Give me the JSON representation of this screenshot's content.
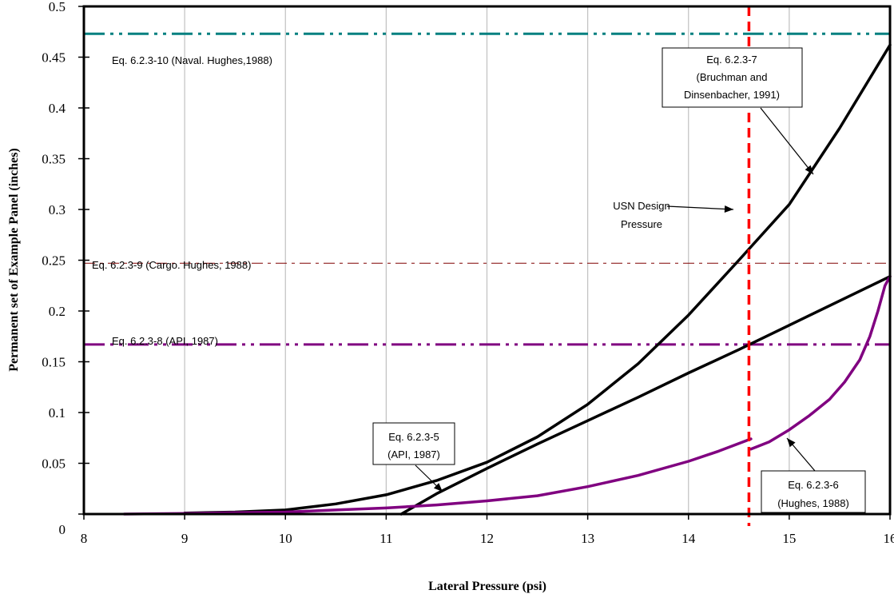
{
  "chart_data": {
    "type": "line",
    "xlabel": "Lateral Pressure (psi)",
    "ylabel": "Permanent set of Example Panel (inches)",
    "xlim": [
      8,
      16
    ],
    "ylim": [
      0,
      0.5
    ],
    "x_ticks": [
      8,
      9,
      10,
      11,
      12,
      13,
      14,
      15,
      16
    ],
    "y_ticks": [
      0,
      0.05,
      0.1,
      0.15,
      0.2,
      0.25,
      0.3,
      0.35,
      0.4,
      0.45,
      0.5
    ],
    "x_tick_labels": [
      "8",
      "9",
      "10",
      "11",
      "12",
      "13",
      "14",
      "15",
      "16"
    ],
    "y_tick_labels": [
      "0",
      "0.05",
      "0.1",
      "0.15",
      "0.2",
      "0.25",
      "0.3",
      "0.35",
      "0.4",
      "0.45",
      "0.5"
    ],
    "grid": "vertical",
    "legend": "none",
    "series": [
      {
        "color": "#000000",
        "points": [
          [
            9.0,
            0.001
          ],
          [
            9.5,
            0.002
          ],
          [
            10.0,
            0.004
          ],
          [
            10.5,
            0.01
          ],
          [
            11.0,
            0.019
          ],
          [
            11.5,
            0.033
          ],
          [
            12.0,
            0.051
          ],
          [
            12.5,
            0.076
          ],
          [
            13.0,
            0.108
          ],
          [
            13.5,
            0.148
          ],
          [
            14.0,
            0.196
          ],
          [
            14.5,
            0.25
          ],
          [
            15.0,
            0.305
          ],
          [
            15.5,
            0.38
          ],
          [
            16.0,
            0.462
          ]
        ]
      },
      {
        "color": "#000000",
        "points": [
          [
            11.15,
            0.0
          ],
          [
            11.5,
            0.02
          ],
          [
            12.0,
            0.045
          ],
          [
            12.5,
            0.069
          ],
          [
            13.0,
            0.092
          ],
          [
            13.5,
            0.115
          ],
          [
            14.0,
            0.139
          ],
          [
            14.5,
            0.162
          ],
          [
            15.0,
            0.186
          ],
          [
            15.5,
            0.21
          ],
          [
            16.0,
            0.234
          ]
        ]
      },
      {
        "color": "#800080",
        "points": [
          [
            8.4,
            0.0
          ],
          [
            9.0,
            0.0006
          ],
          [
            9.5,
            0.0013
          ],
          [
            10.0,
            0.002
          ],
          [
            10.5,
            0.004
          ],
          [
            11.0,
            0.006
          ],
          [
            11.5,
            0.009
          ],
          [
            12.0,
            0.013
          ],
          [
            12.5,
            0.018
          ],
          [
            13.0,
            0.027
          ],
          [
            13.5,
            0.038
          ],
          [
            14.0,
            0.052
          ],
          [
            14.3,
            0.062
          ],
          [
            14.62,
            0.074
          ]
        ]
      },
      {
        "color": "#800080",
        "points": [
          [
            14.62,
            0.064
          ],
          [
            14.8,
            0.071
          ],
          [
            15.0,
            0.083
          ],
          [
            15.2,
            0.097
          ],
          [
            15.4,
            0.113
          ],
          [
            15.55,
            0.13
          ],
          [
            15.7,
            0.152
          ],
          [
            15.8,
            0.175
          ],
          [
            15.88,
            0.2
          ],
          [
            15.95,
            0.225
          ],
          [
            16.0,
            0.234
          ]
        ]
      }
    ],
    "reference_lines": [
      {
        "label": "Eq. 6.2.3-10 (Naval. Hughes,1988)",
        "y": 0.473,
        "color": "#008080",
        "style": "dash-dot-dot",
        "width": 3
      },
      {
        "label": "Eq. 6.2.3-9 (Cargo. Hughes, 1988)",
        "y": 0.247,
        "color": "#800000",
        "style": "dash-dot",
        "width": 1
      },
      {
        "label": "Eq. 6.2.3-8 (API, 1987)",
        "y": 0.167,
        "color": "#800080",
        "style": "dash-dot-dot",
        "width": 3
      }
    ],
    "vertical_line": {
      "x": 14.6,
      "color": "#ff0000",
      "style": "dashed"
    },
    "annotations": [
      {
        "lines": [
          "Eq. 6.2.3-7",
          "(Bruchman and",
          "Dinsenbacher, 1991)"
        ]
      },
      {
        "lines": [
          "USN Design",
          "Pressure"
        ]
      },
      {
        "lines": [
          "Eq. 6.2.3-5",
          "(API, 1987)"
        ]
      },
      {
        "lines": [
          "Eq. 6.2.3-6",
          "(Hughes, 1988)"
        ]
      }
    ]
  }
}
